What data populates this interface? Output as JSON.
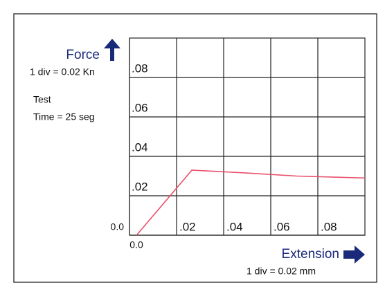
{
  "chart_data": {
    "type": "line",
    "ylabel": "Force",
    "xlabel": "Extension",
    "annotations": [
      "1 div = 0.02 Kn",
      "Test",
      "Time = 25 seg",
      "1 div = 0.02 mm"
    ],
    "x": [
      0.003,
      0.0265,
      0.049,
      0.071,
      0.1
    ],
    "values": [
      0,
      0.033,
      0.0316,
      0.03,
      0.029
    ],
    "color": "#e8506a",
    "xlim": [
      0,
      0.1
    ],
    "ylim": [
      0,
      0.1
    ],
    "xticks": [
      {
        "value": 0,
        "label": "0.0"
      },
      {
        "value": 0.02,
        "label": ".02"
      },
      {
        "value": 0.04,
        "label": ".04"
      },
      {
        "value": 0.06,
        "label": ".06"
      },
      {
        "value": 0.08,
        "label": ".08"
      }
    ],
    "yticks": [
      {
        "value": 0,
        "label": "0.0"
      },
      {
        "value": 0.02,
        "label": ".02"
      },
      {
        "value": 0.04,
        "label": ".04"
      },
      {
        "value": 0.06,
        "label": ".06"
      },
      {
        "value": 0.08,
        "label": ".08"
      }
    ],
    "grid": true
  }
}
